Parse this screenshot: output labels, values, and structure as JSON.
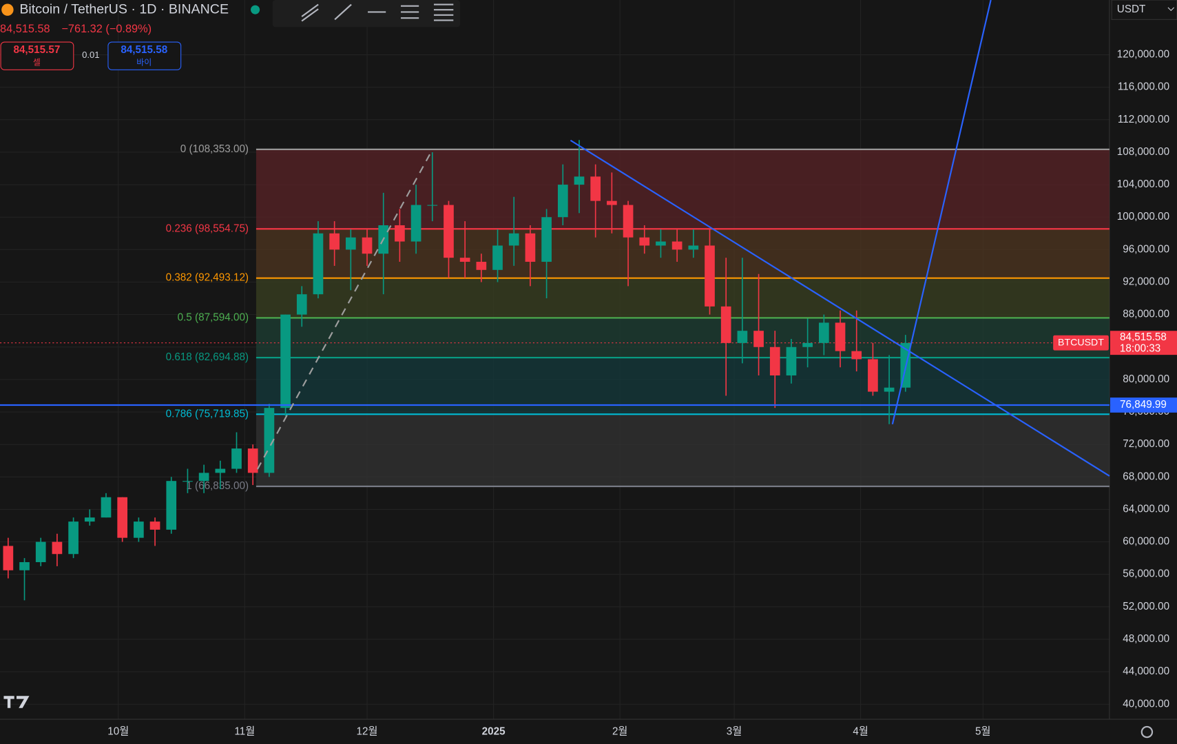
{
  "header": {
    "title": "Bitcoin / TetherUS · 1D · BINANCE",
    "last_price": "84,515.58",
    "change": "−761.32 (−0.89%)",
    "sell_price": "84,515.57",
    "sell_label": "셀",
    "spread": "0.01",
    "buy_price": "84,515.58",
    "buy_label": "바이",
    "currency": "USDT"
  },
  "chart_data": {
    "type": "candlestick",
    "up_color": "#089981",
    "down_color": "#f23645",
    "xlim": [
      0,
      68
    ],
    "xticks": [
      {
        "value": 7.25,
        "label": "10월"
      },
      {
        "value": 15,
        "label": "11월"
      },
      {
        "value": 22.5,
        "label": "12월"
      },
      {
        "value": 30.25,
        "label": "2025"
      },
      {
        "value": 38,
        "label": "2월"
      },
      {
        "value": 45,
        "label": "3월"
      },
      {
        "value": 52.75,
        "label": "4월"
      },
      {
        "value": 60.25,
        "label": "5월"
      }
    ],
    "ylim": [
      38150,
      126750
    ],
    "yticks": [
      {
        "value": 40000,
        "label": "40,000.00"
      },
      {
        "value": 44000,
        "label": "44,000.00"
      },
      {
        "value": 48000,
        "label": "48,000.00"
      },
      {
        "value": 52000,
        "label": "52,000.00"
      },
      {
        "value": 56000,
        "label": "56,000.00"
      },
      {
        "value": 60000,
        "label": "60,000.00"
      },
      {
        "value": 64000,
        "label": "64,000.00"
      },
      {
        "value": 68000,
        "label": "68,000.00"
      },
      {
        "value": 72000,
        "label": "72,000.00"
      },
      {
        "value": 76000,
        "label": "76,000.00"
      },
      {
        "value": 80000,
        "label": "80,000.00"
      },
      {
        "value": 84000,
        "label": "84,000.00"
      },
      {
        "value": 88000,
        "label": "88,000.00"
      },
      {
        "value": 92000,
        "label": "92,000.00"
      },
      {
        "value": 96000,
        "label": "96,000.00"
      },
      {
        "value": 100000,
        "label": "100,000.00"
      },
      {
        "value": 104000,
        "label": "104,000.00"
      },
      {
        "value": 108000,
        "label": "108,000.00"
      },
      {
        "value": 112000,
        "label": "112,000.00"
      },
      {
        "value": 116000,
        "label": "116,000.00"
      },
      {
        "value": 120000,
        "label": "120,000.00"
      }
    ],
    "grid": true,
    "open": [
      59500,
      56500,
      57500,
      60000,
      58500,
      62500,
      63000,
      65500,
      60500,
      62500,
      61500,
      67500,
      67500,
      68500,
      69000,
      71500,
      68500,
      76500,
      88000,
      90500,
      98000,
      96000,
      97500,
      95500,
      99000,
      97000,
      101500,
      101500,
      95000,
      94500,
      93500,
      96500,
      98000,
      94500,
      100000,
      104000,
      105000,
      102000,
      101500,
      97500,
      96500,
      97000,
      96000,
      96500,
      89000,
      84500,
      86000,
      84000,
      80500,
      84000,
      84500,
      87000,
      83500,
      82500,
      78500,
      79000
    ],
    "high": [
      60500,
      58000,
      60500,
      61000,
      63000,
      64000,
      66000,
      65500,
      63000,
      63000,
      68000,
      69000,
      69500,
      70000,
      73500,
      72000,
      77000,
      88000,
      91500,
      99500,
      99500,
      98500,
      98500,
      103000,
      101000,
      104000,
      108000,
      102000,
      99500,
      95500,
      98500,
      102500,
      99000,
      101000,
      106500,
      109500,
      106500,
      105500,
      102000,
      99000,
      98500,
      98500,
      98500,
      98500,
      95000,
      95000,
      93000,
      86000,
      85000,
      87500,
      88000,
      88500,
      88500,
      84500,
      83000,
      85500
    ],
    "low": [
      55500,
      52800,
      57000,
      57000,
      58000,
      62000,
      63000,
      60000,
      60000,
      59500,
      61000,
      66000,
      66000,
      66500,
      68500,
      67000,
      68000,
      75500,
      86500,
      90000,
      94000,
      91000,
      94000,
      90500,
      94500,
      95500,
      99500,
      92500,
      92500,
      92000,
      92000,
      94000,
      91500,
      90000,
      99000,
      100500,
      97500,
      98000,
      91500,
      95500,
      95000,
      94500,
      95000,
      88000,
      78000,
      82000,
      80500,
      76500,
      79500,
      81500,
      83000,
      81500,
      81000,
      78000,
      74500,
      78500
    ],
    "close": [
      56500,
      57500,
      60000,
      58500,
      62500,
      63000,
      65500,
      60500,
      62500,
      61500,
      67500,
      67500,
      68500,
      69000,
      71500,
      68500,
      76500,
      88000,
      90500,
      98000,
      96000,
      97500,
      95500,
      99000,
      97000,
      101500,
      101500,
      95000,
      94500,
      93500,
      96500,
      98000,
      94500,
      100000,
      104000,
      105000,
      102000,
      101500,
      97500,
      96500,
      97000,
      96000,
      96500,
      89000,
      84500,
      86000,
      84000,
      80500,
      84000,
      84500,
      87000,
      83500,
      82500,
      78500,
      79000,
      84500
    ],
    "fib_levels": [
      {
        "value": 108353,
        "label": "0 (108,353.00)",
        "color": "#9e9e9e"
      },
      {
        "value": 98554.75,
        "label": "0.236 (98,554.75)",
        "color": "#f23645"
      },
      {
        "value": 92493.12,
        "label": "0.382 (92,493.12)",
        "color": "#ff9800"
      },
      {
        "value": 87594,
        "label": "0.5 (87,594.00)",
        "color": "#4caf50"
      },
      {
        "value": 82694.88,
        "label": "0.618 (82,694.88)",
        "color": "#089981"
      },
      {
        "value": 75719.85,
        "label": "0.786 (75,719.85)",
        "color": "#00bcd4"
      },
      {
        "value": 66835,
        "label": "1 (66,835.00)",
        "color": "#787b86"
      }
    ],
    "fib_zone_colors": [
      "#5a2327",
      "#4f3520",
      "#3a4022",
      "#1e3f34",
      "#14393c",
      "#333333"
    ],
    "fib_start_x": 15.7,
    "trend_lines": [
      {
        "x": [
          34.97,
          68
        ],
        "y": [
          109460,
          68117
        ],
        "color": "#2962ff"
      },
      {
        "x": [
          54.7,
          60.73
        ],
        "y": [
          74500,
          126750
        ],
        "color": "#2962ff"
      },
      {
        "x": [
          15.78,
          26.41
        ],
        "y": [
          68950,
          107980
        ],
        "color": "#9e9e9e",
        "dashed": true
      }
    ],
    "horizontal_line": {
      "value": 76849.99,
      "label": "76,849.99",
      "color": "#2962ff"
    },
    "price_line": {
      "value": 84515.58,
      "symbol": "BTCUSDT",
      "label": "84,515.58",
      "countdown": "18:00:33",
      "color": "#f23645"
    }
  }
}
